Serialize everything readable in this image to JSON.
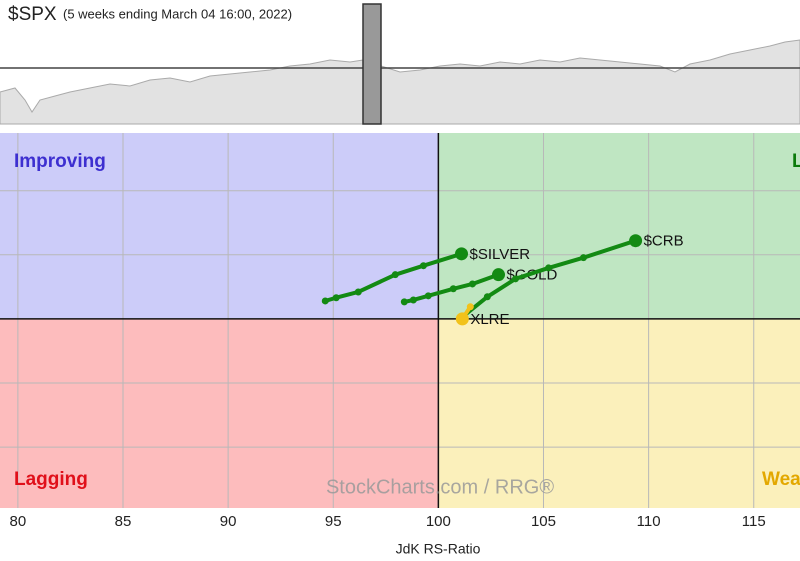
{
  "chart_data": {
    "type": "rrg",
    "title": "$SPX",
    "subtitle": "(5 weeks ending March 04 16:00, 2022)",
    "x_label": "JdK RS-Ratio",
    "watermark": "StockCharts.com / RRG®",
    "quadrants": [
      "Improving",
      "Leading",
      "Lagging",
      "Weakening"
    ],
    "quadrant_colors": [
      "#ccccf9",
      "#bfe6c2",
      "#fdbcbd",
      "#fbf0bb"
    ],
    "quadrant_text_colors": [
      "#3d2fd0",
      "#0a7a0a",
      "#e0101a",
      "#e3a800"
    ],
    "center": [
      100,
      100
    ],
    "xlim": [
      79.15,
      117.2
    ],
    "xticks": [
      80,
      85,
      90,
      95,
      100,
      105,
      110,
      115
    ],
    "ylim": [
      94.1,
      105.8
    ],
    "yticks": [
      96,
      98,
      100,
      102,
      104
    ],
    "grid": true,
    "series": [
      {
        "name": "$SILVER",
        "color": "#138a13",
        "x": [
          94.62,
          95.14,
          96.19,
          97.95,
          99.29,
          101.1
        ],
        "values": [
          100.56,
          100.66,
          100.84,
          101.38,
          101.66,
          102.03
        ]
      },
      {
        "name": "$GOLD",
        "color": "#138a13",
        "x": [
          98.38,
          98.81,
          99.52,
          100.71,
          101.62,
          102.86
        ],
        "values": [
          100.53,
          100.59,
          100.72,
          100.94,
          101.09,
          101.38
        ]
      },
      {
        "name": "$CRB",
        "color": "#138a13",
        "x": [
          101.14,
          102.33,
          103.67,
          105.24,
          106.9,
          109.38
        ],
        "values": [
          100.06,
          100.69,
          101.25,
          101.59,
          101.91,
          102.44
        ]
      },
      {
        "name": "XLRE",
        "color": "#f2c21b",
        "x": [
          101.52,
          101.14
        ],
        "values": [
          100.38,
          100.0
        ]
      }
    ]
  }
}
